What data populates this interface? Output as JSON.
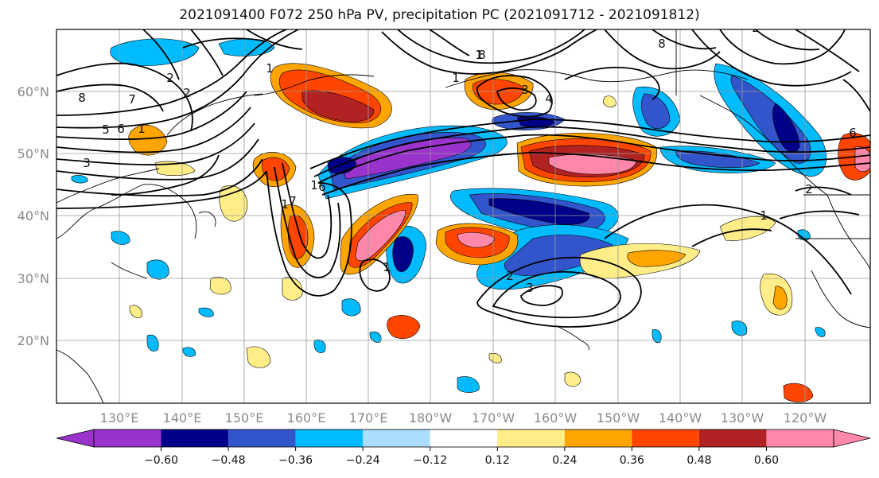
{
  "title": "2021091400 F072 250 hPa PV, precipitation PC (2021091712 - 2021091812)",
  "colors": {
    "levels": [
      "#9933cc",
      "#000088",
      "#3355cc",
      "#00bbff",
      "#aaddff",
      "#ffffff",
      "#ffee88",
      "#ffa500",
      "#ff4500",
      "#b22222",
      "#ff88aa"
    ],
    "gridline": "#9a9a9a",
    "contour": "#000000",
    "coast": "#000000"
  },
  "map": {
    "lat_labels": [
      "60°N",
      "50°N",
      "40°N",
      "30°N",
      "20°N"
    ],
    "lon_labels": [
      "130°E",
      "140°E",
      "150°E",
      "160°E",
      "170°E",
      "180°W",
      "170°W",
      "160°W",
      "150°W",
      "140°W",
      "130°W",
      "120°W"
    ]
  },
  "colorbar": {
    "ticks": [
      "−0.60",
      "−0.48",
      "−0.36",
      "−0.24",
      "−0.12",
      "0.12",
      "0.24",
      "0.36",
      "0.48",
      "0.60"
    ]
  },
  "pv_contour_labels": [
    "1",
    "1",
    "1",
    "1",
    "1",
    "1",
    "1",
    "1",
    "2",
    "2",
    "2",
    "2",
    "2",
    "3",
    "3",
    "3",
    "4",
    "5",
    "6",
    "6",
    "6",
    "7",
    "7",
    "8",
    "8",
    "8"
  ]
}
